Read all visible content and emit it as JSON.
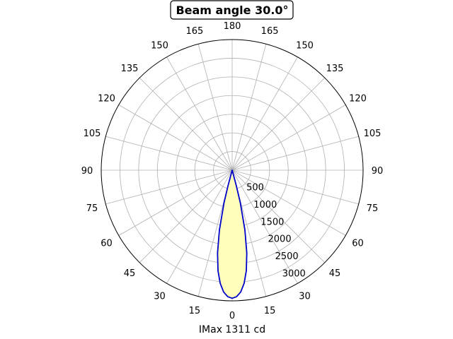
{
  "chart_data": {
    "type": "polar",
    "title": "Beam angle 30.0°",
    "xlabel": "IMax 1311 cd",
    "angle_tick_labels": [
      "0",
      "15",
      "30",
      "45",
      "60",
      "75",
      "90",
      "105",
      "120",
      "135",
      "150",
      "165",
      "180",
      "165",
      "150",
      "135",
      "120",
      "105",
      "90",
      "75",
      "60",
      "45",
      "30",
      "15"
    ],
    "radial_ticks": [
      500,
      1000,
      1500,
      2000,
      2500,
      3000
    ],
    "radial_tick_labels": [
      "500",
      "1000",
      "1500",
      "2000",
      "2500",
      "3000"
    ],
    "rlim": [
      0,
      3500
    ],
    "grid": true,
    "series": [
      {
        "angles_deg": [
          -16,
          -15,
          -14,
          -12,
          -10,
          -8,
          -6,
          -4,
          -2,
          0,
          2,
          4,
          6,
          8,
          10,
          12,
          14,
          15,
          16
        ],
        "values": [
          0,
          410,
          900,
          1640,
          2250,
          2720,
          3050,
          3270,
          3390,
          3430,
          3390,
          3270,
          3050,
          2720,
          2250,
          1640,
          900,
          410,
          0
        ],
        "line_color": "#0000cc",
        "fill_color": "#ffffbb"
      }
    ]
  }
}
